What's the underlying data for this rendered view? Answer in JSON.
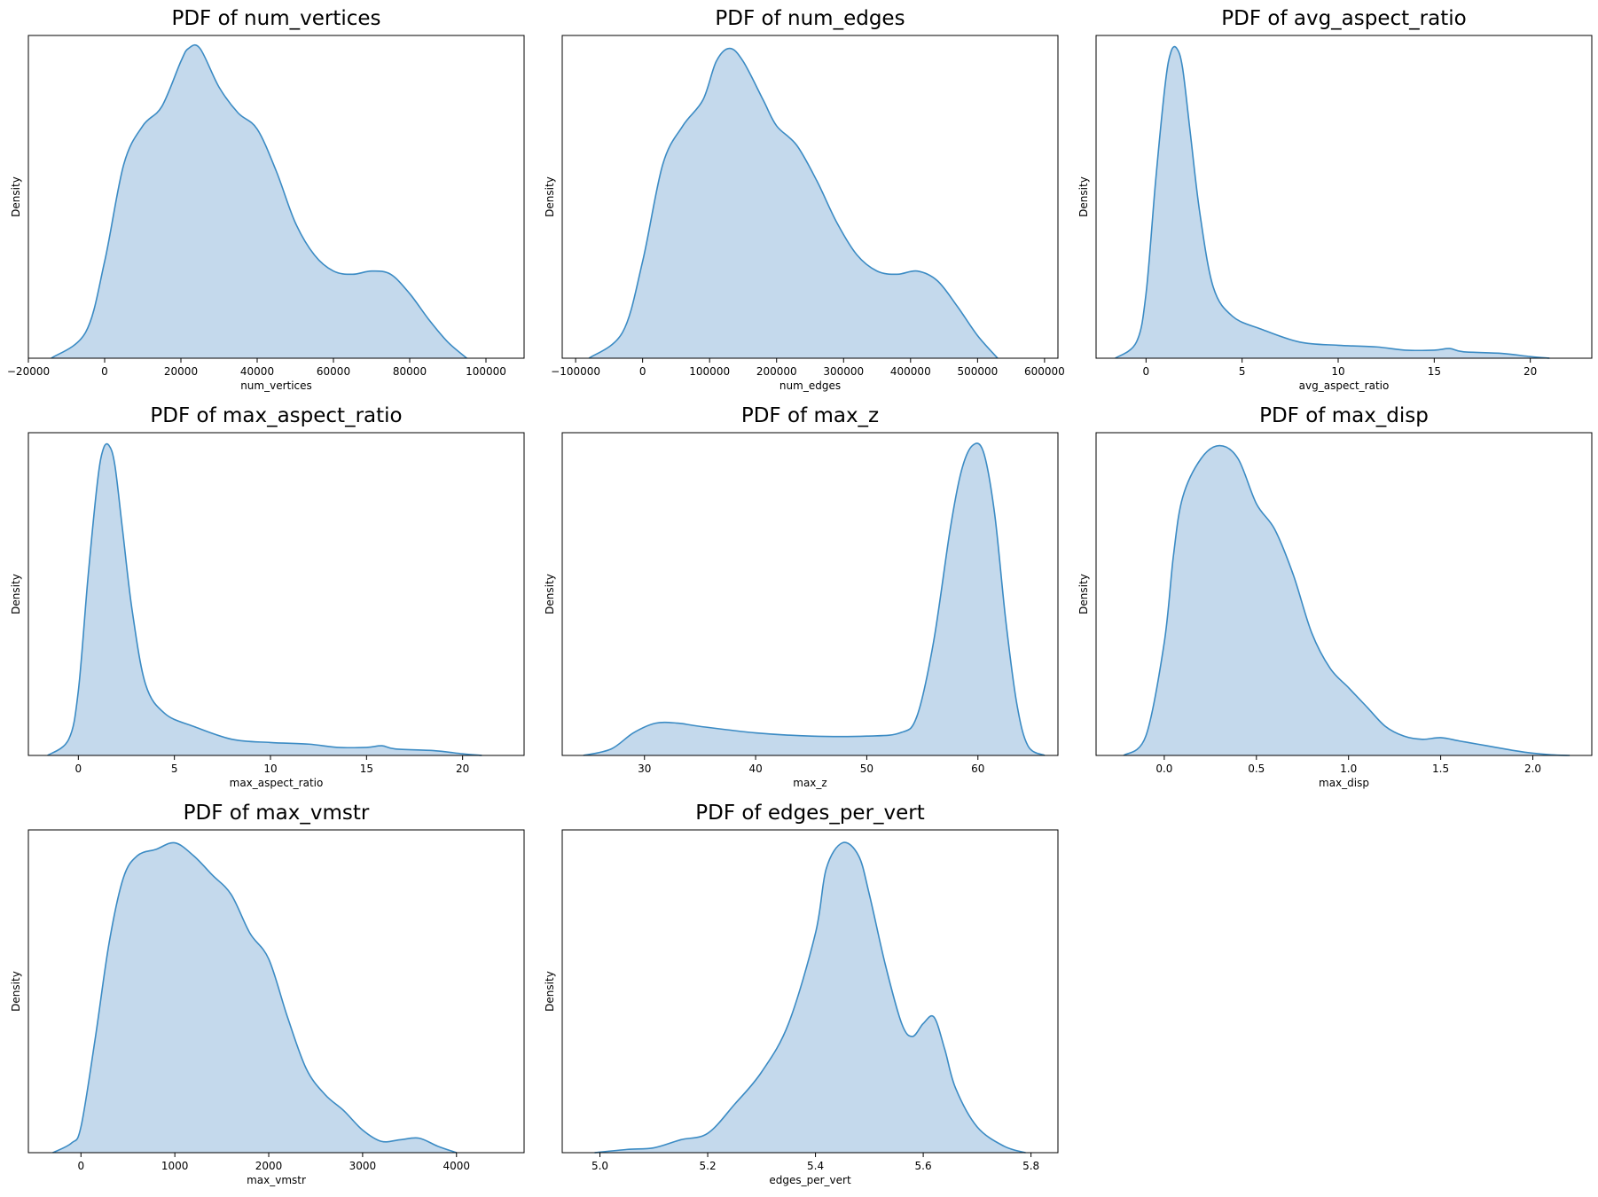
{
  "chart_data": [
    {
      "type": "area",
      "title": "PDF of num_vertices",
      "xlabel": "num_vertices",
      "ylabel": "Density",
      "xlim": [
        -20000,
        110000
      ],
      "xticks": [
        -20000,
        0,
        20000,
        40000,
        60000,
        80000,
        100000
      ],
      "xtick_labels": [
        "−20000",
        "0",
        "20000",
        "40000",
        "60000",
        "80000",
        "100000"
      ],
      "curve": {
        "x": [
          -14000,
          -5000,
          0,
          5000,
          10000,
          15000,
          20000,
          22000,
          25000,
          30000,
          35000,
          40000,
          45000,
          50000,
          55000,
          60000,
          65000,
          70000,
          75000,
          80000,
          85000,
          90000,
          95000
        ],
        "density": [
          0.0,
          0.08,
          0.3,
          0.6,
          0.72,
          0.78,
          0.92,
          0.96,
          0.96,
          0.84,
          0.76,
          0.71,
          0.58,
          0.42,
          0.32,
          0.27,
          0.26,
          0.27,
          0.26,
          0.2,
          0.12,
          0.05,
          0.0
        ]
      }
    },
    {
      "type": "area",
      "title": "PDF of num_edges",
      "xlabel": "num_edges",
      "ylabel": "Density",
      "xlim": [
        -120000,
        620000
      ],
      "xticks": [
        -100000,
        0,
        100000,
        200000,
        300000,
        400000,
        500000,
        600000
      ],
      "xtick_labels": [
        "−100000",
        "0",
        "100000",
        "200000",
        "300000",
        "400000",
        "500000",
        "600000"
      ],
      "curve": {
        "x": [
          -80000,
          -30000,
          0,
          30000,
          60000,
          90000,
          110000,
          130000,
          150000,
          180000,
          200000,
          230000,
          260000,
          290000,
          320000,
          350000,
          380000,
          410000,
          440000,
          470000,
          500000,
          530000
        ],
        "density": [
          0.0,
          0.08,
          0.3,
          0.6,
          0.72,
          0.8,
          0.92,
          0.96,
          0.92,
          0.8,
          0.72,
          0.66,
          0.55,
          0.42,
          0.32,
          0.27,
          0.26,
          0.27,
          0.24,
          0.16,
          0.07,
          0.0
        ]
      }
    },
    {
      "type": "area",
      "title": "PDF of avg_aspect_ratio",
      "xlabel": "avg_aspect_ratio",
      "ylabel": "Density",
      "xlim": [
        -2.6,
        23.2
      ],
      "xticks": [
        0,
        5,
        10,
        15,
        20
      ],
      "xtick_labels": [
        "0",
        "5",
        "10",
        "15",
        "20"
      ],
      "curve": {
        "x": [
          -1.6,
          -0.5,
          0,
          0.5,
          1.0,
          1.3,
          1.6,
          1.9,
          2.3,
          2.8,
          3.5,
          4.5,
          6,
          8,
          10,
          12,
          13.5,
          15,
          15.8,
          16.5,
          18.5,
          20,
          21
        ],
        "density": [
          0.0,
          0.05,
          0.2,
          0.55,
          0.85,
          0.95,
          0.96,
          0.9,
          0.7,
          0.45,
          0.22,
          0.13,
          0.09,
          0.05,
          0.04,
          0.035,
          0.025,
          0.025,
          0.03,
          0.02,
          0.015,
          0.005,
          0.0
        ]
      }
    },
    {
      "type": "area",
      "title": "PDF of max_aspect_ratio",
      "xlabel": "max_aspect_ratio",
      "ylabel": "Density",
      "xlim": [
        -2.6,
        23.2
      ],
      "xticks": [
        0,
        5,
        10,
        15,
        20
      ],
      "xtick_labels": [
        "0",
        "5",
        "10",
        "15",
        "20"
      ],
      "curve": {
        "x": [
          -1.6,
          -0.5,
          0,
          0.5,
          1.0,
          1.3,
          1.6,
          1.9,
          2.3,
          2.8,
          3.5,
          4.5,
          6,
          8,
          10,
          12,
          13.5,
          15,
          15.8,
          16.5,
          18.5,
          20,
          21
        ],
        "density": [
          0.0,
          0.05,
          0.2,
          0.55,
          0.85,
          0.95,
          0.96,
          0.9,
          0.7,
          0.45,
          0.22,
          0.13,
          0.09,
          0.05,
          0.04,
          0.035,
          0.025,
          0.025,
          0.03,
          0.02,
          0.015,
          0.005,
          0.0
        ]
      }
    },
    {
      "type": "area",
      "title": "PDF of max_z",
      "xlabel": "max_z",
      "ylabel": "Density",
      "xlim": [
        22.6,
        67.2
      ],
      "xticks": [
        30,
        40,
        50,
        60
      ],
      "xtick_labels": [
        "30",
        "40",
        "50",
        "60"
      ],
      "curve": {
        "x": [
          24.5,
          27,
          29,
          31,
          33,
          35,
          40,
          45,
          50,
          53,
          54.5,
          56,
          57.5,
          58.5,
          59.5,
          60.5,
          61.5,
          62.5,
          63.5,
          64.5,
          66
        ],
        "density": [
          0.0,
          0.02,
          0.07,
          0.1,
          0.1,
          0.09,
          0.07,
          0.06,
          0.06,
          0.07,
          0.12,
          0.35,
          0.7,
          0.88,
          0.96,
          0.94,
          0.75,
          0.42,
          0.16,
          0.03,
          0.0
        ]
      }
    },
    {
      "type": "area",
      "title": "PDF of max_disp",
      "xlabel": "max_disp",
      "ylabel": "Density",
      "xlim": [
        -0.37,
        2.32
      ],
      "xticks": [
        0.0,
        0.5,
        1.0,
        1.5,
        2.0
      ],
      "xtick_labels": [
        "0.0",
        "0.5",
        "1.0",
        "1.5",
        "2.0"
      ],
      "curve": {
        "x": [
          -0.22,
          -0.1,
          0,
          0.05,
          0.1,
          0.2,
          0.3,
          0.4,
          0.5,
          0.6,
          0.7,
          0.8,
          0.9,
          1.0,
          1.1,
          1.2,
          1.3,
          1.4,
          1.5,
          1.6,
          1.7,
          1.8,
          1.9,
          2.0,
          2.1,
          2.2
        ],
        "density": [
          0.0,
          0.06,
          0.35,
          0.62,
          0.8,
          0.92,
          0.96,
          0.92,
          0.78,
          0.7,
          0.56,
          0.38,
          0.27,
          0.21,
          0.15,
          0.09,
          0.06,
          0.05,
          0.055,
          0.045,
          0.035,
          0.025,
          0.015,
          0.007,
          0.002,
          0.0
        ]
      }
    },
    {
      "type": "area",
      "title": "PDF of max_vmstr",
      "xlabel": "max_vmstr",
      "ylabel": "Density",
      "xlim": [
        -560,
        4720
      ],
      "xticks": [
        0,
        1000,
        2000,
        3000,
        4000
      ],
      "xtick_labels": [
        "0",
        "1000",
        "2000",
        "3000",
        "4000"
      ],
      "curve": {
        "x": [
          -300,
          -100,
          0,
          150,
          300,
          450,
          600,
          800,
          1000,
          1200,
          1400,
          1600,
          1800,
          2000,
          2200,
          2400,
          2600,
          2800,
          3000,
          3200,
          3400,
          3600,
          3800,
          4000
        ],
        "density": [
          0.0,
          0.03,
          0.08,
          0.35,
          0.65,
          0.85,
          0.92,
          0.94,
          0.96,
          0.92,
          0.86,
          0.8,
          0.68,
          0.6,
          0.42,
          0.26,
          0.18,
          0.13,
          0.07,
          0.035,
          0.04,
          0.045,
          0.02,
          0.0
        ]
      }
    },
    {
      "type": "area",
      "title": "PDF of edges_per_vert",
      "xlabel": "edges_per_vert",
      "ylabel": "Density",
      "xlim": [
        4.93,
        5.85
      ],
      "xticks": [
        5.0,
        5.2,
        5.4,
        5.6,
        5.8
      ],
      "xtick_labels": [
        "5.0",
        "5.2",
        "5.4",
        "5.6",
        "5.8"
      ],
      "curve": {
        "x": [
          4.99,
          5.05,
          5.1,
          5.15,
          5.2,
          5.25,
          5.3,
          5.35,
          5.4,
          5.42,
          5.45,
          5.48,
          5.5,
          5.53,
          5.56,
          5.58,
          5.6,
          5.62,
          5.64,
          5.66,
          5.7,
          5.75,
          5.79
        ],
        "density": [
          0.0,
          0.01,
          0.015,
          0.04,
          0.06,
          0.15,
          0.25,
          0.4,
          0.68,
          0.88,
          0.96,
          0.92,
          0.8,
          0.58,
          0.4,
          0.36,
          0.4,
          0.42,
          0.32,
          0.2,
          0.08,
          0.02,
          0.0
        ]
      }
    }
  ]
}
